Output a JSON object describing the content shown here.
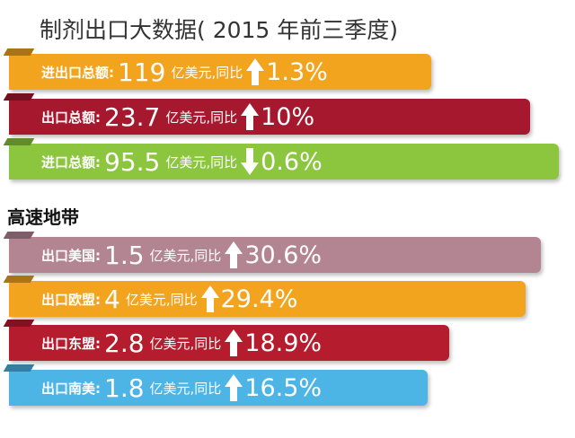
{
  "title": "制剂出口大数据( 2015 年前三季度)",
  "groups": [
    {
      "rows": [
        {
          "label": "进出口总额:",
          "value": "119",
          "unit": "亿美元,同比",
          "trend": "up",
          "change": "1.3%"
        },
        {
          "label": "出口总额:",
          "value": "23.7",
          "unit": "亿美元,同比",
          "trend": "up",
          "change": "10%"
        },
        {
          "label": "进口总额:",
          "value": "95.5",
          "unit": "亿美元,同比",
          "trend": "down",
          "change": "0.6%"
        }
      ]
    },
    {
      "heading": "高速地带",
      "rows": [
        {
          "label": "出口美国:",
          "value": "1.5",
          "unit": "亿美元,同比",
          "trend": "up",
          "change": "30.6%"
        },
        {
          "label": "出口欧盟:",
          "value": "4",
          "unit": "亿美元,同比",
          "trend": "up",
          "change": "29.4%"
        },
        {
          "label": "出口东盟:",
          "value": "2.8",
          "unit": "亿美元,同比",
          "trend": "up",
          "change": "18.9%"
        },
        {
          "label": "出口南美:",
          "value": "1.8",
          "unit": "亿美元,同比",
          "trend": "up",
          "change": "16.5%"
        }
      ]
    }
  ]
}
